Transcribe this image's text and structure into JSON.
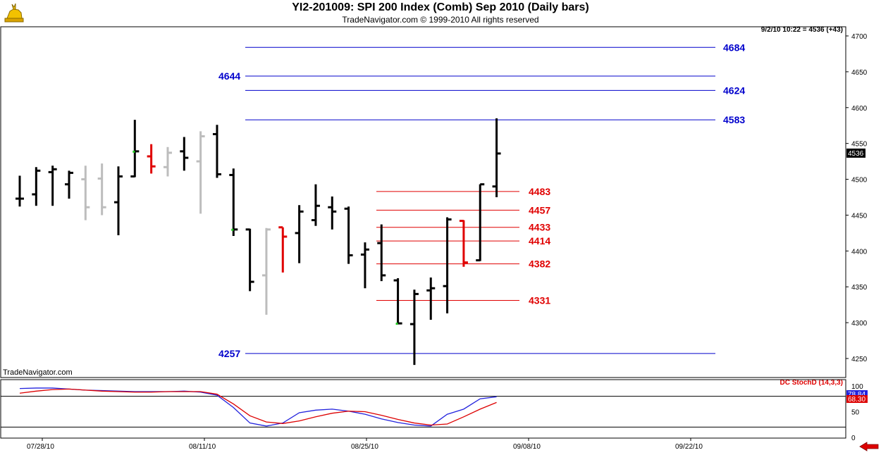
{
  "header": {
    "title": "YI2-201009:  SPI 200 Index (Comb) Sep 2010  (Daily bars)",
    "subtitle": "TradeNavigator.com © 1999-2010 All rights reserved",
    "last_price_note": "9/2/10 10:22 = 4536 (+43)",
    "credit": "TradeNavigator.com",
    "logo_icon": "golden-bull-logo-icon"
  },
  "colors": {
    "up_bar": "#000000",
    "down_bar": "#bdbdbd",
    "reversal_bar": "#e00000",
    "blue_levels": "#0000cc",
    "red_levels": "#e00000",
    "stoch_fast": "#2222dd",
    "stoch_slow": "#dd0000",
    "marker_green": "#22cc22"
  },
  "chart_data": [
    {
      "type": "ohlc",
      "title": "YI2-201009:  SPI 200 Index (Comb) Sep 2010  (Daily bars)",
      "ylim": [
        4230,
        4715
      ],
      "y_ticks": [
        4250,
        4300,
        4350,
        4400,
        4450,
        4500,
        4550,
        4600,
        4650,
        4700
      ],
      "x_tick_labels": [
        "07/28/10",
        "08/11/10",
        "08/25/10",
        "09/08/10",
        "09/22/10"
      ],
      "last_price_tag": "4536",
      "bars": [
        {
          "o": 4473,
          "h": 4505,
          "l": 4462,
          "c": 4473,
          "color": "black"
        },
        {
          "o": 4479,
          "h": 4517,
          "l": 4463,
          "c": 4512,
          "color": "black"
        },
        {
          "o": 4510,
          "h": 4519,
          "l": 4463,
          "c": 4514,
          "color": "black"
        },
        {
          "o": 4493,
          "h": 4512,
          "l": 4473,
          "c": 4509,
          "color": "black"
        },
        {
          "o": 4500,
          "h": 4519,
          "l": 4443,
          "c": 4461,
          "color": "gray"
        },
        {
          "o": 4501,
          "h": 4522,
          "l": 4450,
          "c": 4461,
          "color": "gray"
        },
        {
          "o": 4468,
          "h": 4518,
          "l": 4422,
          "c": 4504,
          "color": "black"
        },
        {
          "o": 4504,
          "h": 4583,
          "l": 4503,
          "c": 4539,
          "color": "black"
        },
        {
          "o": 4532,
          "h": 4549,
          "l": 4508,
          "c": 4518,
          "color": "red"
        },
        {
          "o": 4517,
          "h": 4545,
          "l": 4504,
          "c": 4537,
          "color": "gray"
        },
        {
          "o": 4539,
          "h": 4559,
          "l": 4512,
          "c": 4530,
          "color": "black"
        },
        {
          "o": 4525,
          "h": 4567,
          "l": 4452,
          "c": 4560,
          "color": "gray"
        },
        {
          "o": 4563,
          "h": 4576,
          "l": 4502,
          "c": 4507,
          "color": "black"
        },
        {
          "o": 4506,
          "h": 4515,
          "l": 4421,
          "c": 4430,
          "color": "black"
        },
        {
          "o": 4430,
          "h": 4431,
          "l": 4344,
          "c": 4357,
          "color": "black"
        },
        {
          "o": 4366,
          "h": 4432,
          "l": 4311,
          "c": 4430,
          "color": "gray"
        },
        {
          "o": 4433,
          "h": 4433,
          "l": 4370,
          "c": 4420,
          "color": "red"
        },
        {
          "o": 4425,
          "h": 4464,
          "l": 4383,
          "c": 4455,
          "color": "black"
        },
        {
          "o": 4443,
          "h": 4493,
          "l": 4435,
          "c": 4463,
          "color": "black"
        },
        {
          "o": 4461,
          "h": 4476,
          "l": 4430,
          "c": 4455,
          "color": "black"
        },
        {
          "o": 4459,
          "h": 4462,
          "l": 4382,
          "c": 4394,
          "color": "black"
        },
        {
          "o": 4395,
          "h": 4412,
          "l": 4348,
          "c": 4402,
          "color": "black"
        },
        {
          "o": 4411,
          "h": 4437,
          "l": 4358,
          "c": 4366,
          "color": "black"
        },
        {
          "o": 4359,
          "h": 4362,
          "l": 4299,
          "c": 4299,
          "color": "black"
        },
        {
          "o": 4298,
          "h": 4346,
          "l": 4241,
          "c": 4340,
          "color": "black"
        },
        {
          "o": 4345,
          "h": 4363,
          "l": 4304,
          "c": 4348,
          "color": "black"
        },
        {
          "o": 4351,
          "h": 4447,
          "l": 4313,
          "c": 4444,
          "color": "black"
        },
        {
          "o": 4442,
          "h": 4443,
          "l": 4378,
          "c": 4384,
          "color": "red"
        },
        {
          "o": 4387,
          "h": 4493,
          "l": 4386,
          "c": 4493,
          "color": "black"
        },
        {
          "o": 4490,
          "h": 4585,
          "l": 4475,
          "c": 4536,
          "color": "black"
        }
      ],
      "green_markers": [
        7,
        13,
        23
      ],
      "blue_levels": [
        {
          "value": 4684,
          "label": "4684",
          "label_side": "right"
        },
        {
          "value": 4644,
          "label": "4644",
          "label_side": "left"
        },
        {
          "value": 4624,
          "label": "4624",
          "label_side": "right"
        },
        {
          "value": 4583,
          "label": "4583",
          "label_side": "right"
        },
        {
          "value": 4257,
          "label": "4257",
          "label_side": "left"
        }
      ],
      "red_levels": [
        {
          "value": 4483,
          "label": "4483"
        },
        {
          "value": 4457,
          "label": "4457"
        },
        {
          "value": 4433,
          "label": "4433"
        },
        {
          "value": 4414,
          "label": "4414"
        },
        {
          "value": 4382,
          "label": "4382"
        },
        {
          "value": 4331,
          "label": "4331"
        }
      ]
    },
    {
      "type": "line",
      "title": "DC StochD (14,3,3)",
      "ylim": [
        0,
        100
      ],
      "y_ticks": [
        0,
        50,
        100
      ],
      "reference_lines": [
        80,
        20
      ],
      "value_tags": [
        "78.84",
        "68.30"
      ],
      "series": [
        {
          "key": "fast",
          "values": [
            95,
            96,
            96,
            94,
            92,
            91,
            90,
            89,
            89,
            89,
            90,
            88,
            82,
            58,
            28,
            22,
            28,
            48,
            53,
            55,
            51,
            45,
            36,
            29,
            24,
            22,
            45,
            55,
            75,
            79
          ]
        },
        {
          "key": "slow",
          "values": [
            86,
            90,
            93,
            94,
            92,
            90,
            89,
            88,
            88,
            89,
            89,
            89,
            84,
            65,
            42,
            30,
            27,
            32,
            40,
            47,
            51,
            50,
            43,
            35,
            28,
            24,
            26,
            40,
            55,
            68
          ]
        }
      ]
    }
  ]
}
